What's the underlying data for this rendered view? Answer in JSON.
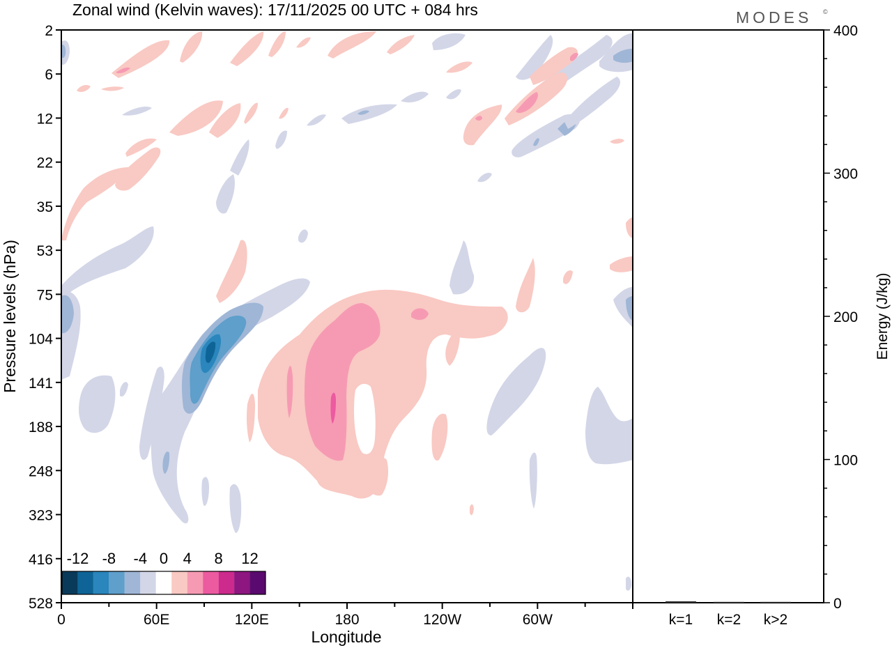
{
  "chart_data": [
    {
      "type": "heatmap",
      "title": "Zonal wind (Kelvin waves):  17/11/2025  00 UTC  + 084 hrs",
      "xlabel": "Longitude",
      "ylabel": "Pressure levels (hPa)",
      "x_ticks": [
        "0",
        "60E",
        "120E",
        "180",
        "120W",
        "60W"
      ],
      "x_range_deg": [
        0,
        360
      ],
      "y_ticks": [
        "2",
        "6",
        "12",
        "22",
        "35",
        "53",
        "75",
        "104",
        "141",
        "188",
        "248",
        "323",
        "416",
        "528"
      ],
      "colorbar": {
        "tick_labels": [
          "-12",
          "-8",
          "-4",
          "0",
          "4",
          "8",
          "12"
        ],
        "levels": [
          -14,
          -12,
          -10,
          -8,
          -6,
          -4,
          -2,
          2,
          4,
          6,
          8,
          10,
          12,
          14
        ],
        "colors": [
          "#0a3a5a",
          "#0e6496",
          "#2a86bd",
          "#5e9fcb",
          "#9fb6d6",
          "#d3d6e7",
          "#ffffff",
          "#f9c9c3",
          "#f69ab3",
          "#ec5aa0",
          "#cc2a8c",
          "#8d1680",
          "#5a0a6e"
        ]
      },
      "features": [
        {
          "name": "negative anomaly",
          "lon_deg": 95,
          "pressure_hPa": 120,
          "value": -11
        },
        {
          "name": "positive anomaly",
          "lon_deg": 172,
          "pressure_hPa": 150,
          "value": 6
        },
        {
          "name": "positive anomaly",
          "lon_deg": 222,
          "pressure_hPa": 90,
          "value": 5
        },
        {
          "name": "positive anomaly",
          "lon_deg": 300,
          "pressure_hPa": 10,
          "value": 5
        },
        {
          "name": "negative anomaly",
          "lon_deg": 345,
          "pressure_hPa": 10,
          "value": -6
        }
      ]
    },
    {
      "type": "bar",
      "ylabel": "Energy (J/kg)",
      "categories": [
        "k=1",
        "k=2",
        "k>2"
      ],
      "values": [
        1,
        0,
        0.5
      ],
      "ylim": [
        0,
        400
      ],
      "y_ticks": [
        "0",
        "100",
        "200",
        "300",
        "400"
      ]
    }
  ],
  "brand": {
    "logo": "MODES",
    "mark": "©"
  }
}
